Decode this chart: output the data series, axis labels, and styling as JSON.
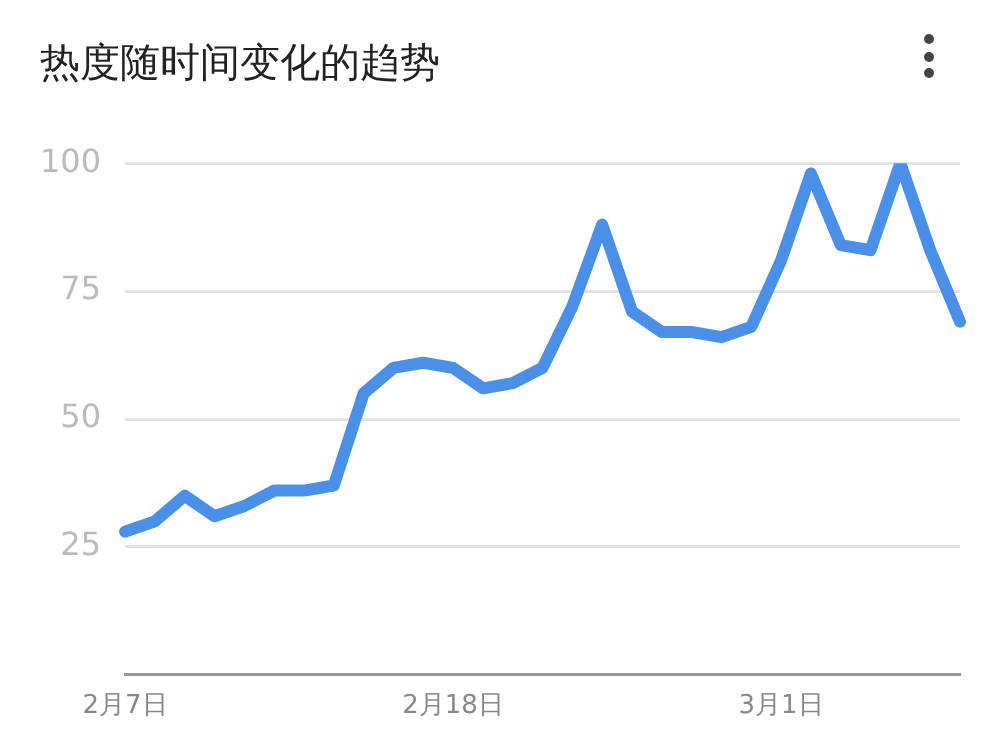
{
  "chart_data": {
    "type": "line",
    "title": "热度随时间变化的趋势",
    "categories": [
      "2月7日",
      null,
      null,
      null,
      null,
      null,
      null,
      null,
      null,
      null,
      null,
      "2月18日",
      null,
      null,
      null,
      null,
      null,
      null,
      null,
      null,
      null,
      null,
      "3月1日",
      null,
      null,
      null,
      null,
      null,
      null
    ],
    "series": [
      {
        "color": "#4a8fe8",
        "values": [
          28,
          30,
          35,
          31,
          33,
          36,
          36,
          37,
          55,
          60,
          61,
          60,
          56,
          57,
          60,
          72,
          88,
          71,
          67,
          67,
          66,
          68,
          81,
          98,
          84,
          83,
          100,
          83,
          69
        ]
      }
    ],
    "ylim": [
      0,
      100
    ],
    "yticks": [
      25,
      50,
      75,
      100
    ],
    "grid": "y",
    "legend": false,
    "marker": "none",
    "line_style": "solid"
  }
}
